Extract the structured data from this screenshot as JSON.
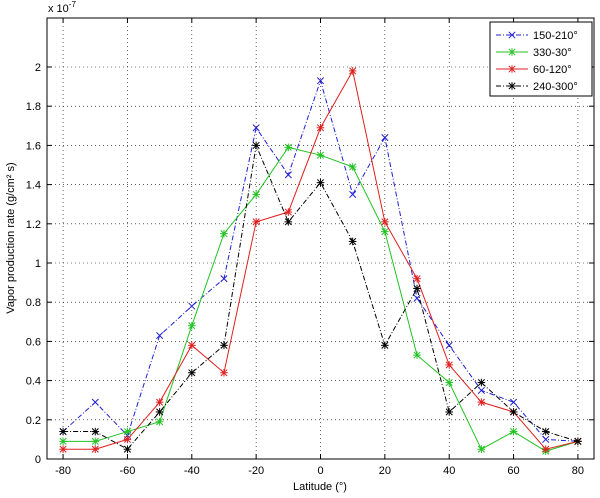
{
  "chart_data": {
    "type": "line",
    "xlabel": "Latitude (°)",
    "ylabel": "Vapor production rate (g/cm² s)",
    "exponent_label": "x 10",
    "exponent_power": "-7",
    "xlim": [
      -85,
      85
    ],
    "ylim": [
      0,
      2.25
    ],
    "xticks": [
      -80,
      -60,
      -40,
      -20,
      0,
      20,
      40,
      60,
      80
    ],
    "xtick_labels": [
      "-80",
      "-60",
      "-40",
      "-20",
      "0",
      "20",
      "40",
      "60",
      "80"
    ],
    "yticks": [
      0,
      0.2,
      0.4,
      0.6,
      0.8,
      1,
      1.2,
      1.4,
      1.6,
      1.8,
      2
    ],
    "ytick_labels": [
      "0",
      "0.2",
      "0.4",
      "0.6",
      "0.8",
      "1",
      "1.2",
      "1.4",
      "1.6",
      "1.8",
      "2"
    ],
    "grid": true,
    "legend_position": "top-right",
    "x": [
      -80,
      -70,
      -60,
      -50,
      -40,
      -30,
      -20,
      -10,
      0,
      10,
      20,
      30,
      40,
      50,
      60,
      70,
      80
    ],
    "series": [
      {
        "name": "150-210°",
        "color": "#1f1fd6",
        "dash": "dashdot",
        "marker": "x",
        "values": [
          0.14,
          0.29,
          0.12,
          0.63,
          0.78,
          0.92,
          1.69,
          1.45,
          1.93,
          1.35,
          1.64,
          0.82,
          0.58,
          0.35,
          0.29,
          0.1,
          0.09
        ]
      },
      {
        "name": "330-30°",
        "color": "#22c322",
        "dash": "solid",
        "marker": "star",
        "values": [
          0.09,
          0.09,
          0.14,
          0.19,
          0.68,
          1.15,
          1.35,
          1.59,
          1.55,
          1.49,
          1.16,
          0.53,
          0.39,
          0.05,
          0.14,
          0.04,
          0.09
        ]
      },
      {
        "name": "60-120°",
        "color": "#e01f1f",
        "dash": "solid",
        "marker": "star",
        "values": [
          0.05,
          0.05,
          0.1,
          0.29,
          0.58,
          0.44,
          1.21,
          1.26,
          1.69,
          1.98,
          1.21,
          0.92,
          0.48,
          0.29,
          0.24,
          0.05,
          0.09
        ]
      },
      {
        "name": "240-300°",
        "color": "#000000",
        "dash": "dashdot",
        "marker": "star",
        "values": [
          0.14,
          0.14,
          0.05,
          0.24,
          0.44,
          0.58,
          1.6,
          1.21,
          1.41,
          1.11,
          0.58,
          0.87,
          0.24,
          0.39,
          0.24,
          0.14,
          0.09
        ]
      }
    ]
  }
}
